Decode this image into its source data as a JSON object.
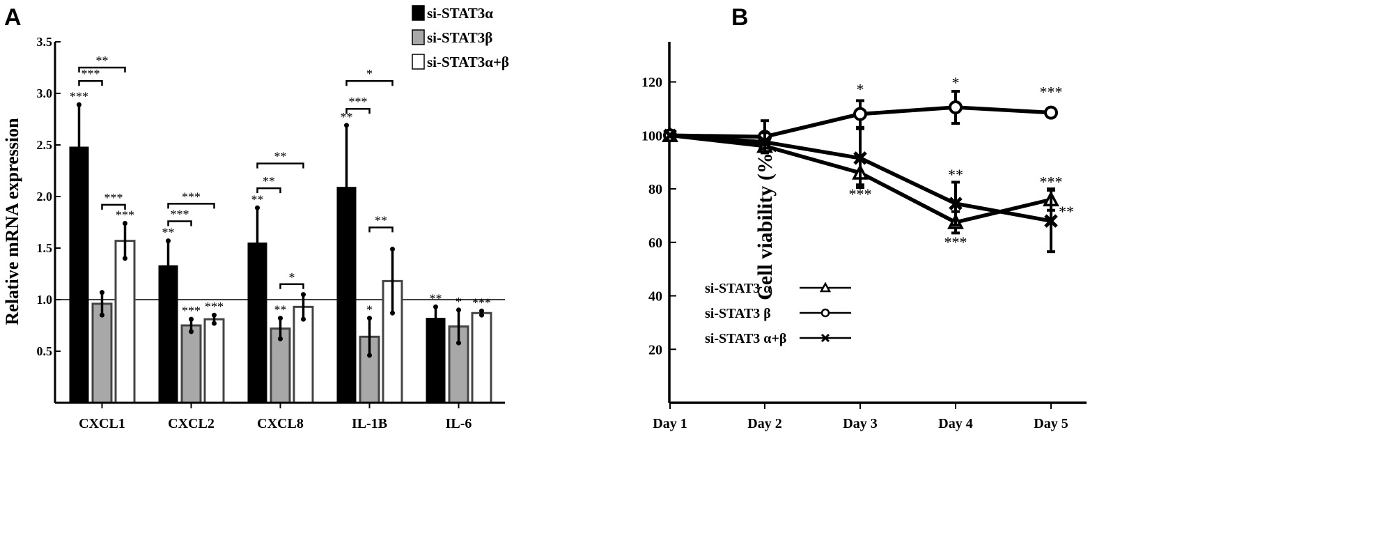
{
  "chart_data": [
    {
      "panel": "A",
      "type": "bar",
      "ylabel": "Relative mRNA expression",
      "ylim": [
        0,
        3.5
      ],
      "yticks": [
        "0.5",
        "1.0",
        "1.5",
        "2.0",
        "2.5",
        "3.0",
        "3.5"
      ],
      "reference_line": 1.0,
      "categories": [
        "CXCL1",
        "CXCL2",
        "CXCL8",
        "IL-1B",
        "IL-6"
      ],
      "series": [
        {
          "name": "si-STAT3α",
          "fill": "#000000",
          "values": [
            2.48,
            1.33,
            1.55,
            2.09,
            0.82
          ],
          "errors": [
            0.41,
            0.24,
            0.34,
            0.6,
            0.11
          ],
          "stars": [
            "***",
            "**",
            "**",
            "**",
            "**"
          ]
        },
        {
          "name": "si-STAT3β",
          "fill": "#a8a8a8",
          "values": [
            0.96,
            0.75,
            0.72,
            0.64,
            0.74
          ],
          "errors": [
            0.11,
            0.06,
            0.1,
            0.18,
            0.16
          ],
          "stars": [
            "",
            "***",
            "**",
            "*",
            "*"
          ]
        },
        {
          "name": "si-STAT3α+β",
          "fill": "#ffffff",
          "values": [
            1.57,
            0.81,
            0.93,
            1.18,
            0.87
          ],
          "errors": [
            0.17,
            0.04,
            0.12,
            0.31,
            0.02
          ],
          "stars": [
            "***",
            "***",
            "",
            "",
            "***"
          ]
        }
      ],
      "brackets": [
        {
          "cat": 0,
          "from": 0,
          "to": 1,
          "y": 3.12,
          "label": "***"
        },
        {
          "cat": 0,
          "from": 0,
          "to": 2,
          "y": 3.25,
          "label": "**"
        },
        {
          "cat": 0,
          "from": 1,
          "to": 2,
          "y": 1.92,
          "label": "***"
        },
        {
          "cat": 1,
          "from": 0,
          "to": 1,
          "y": 1.76,
          "label": "***"
        },
        {
          "cat": 1,
          "from": 0,
          "to": 2,
          "y": 1.93,
          "label": "***"
        },
        {
          "cat": 2,
          "from": 0,
          "to": 1,
          "y": 2.08,
          "label": "**"
        },
        {
          "cat": 2,
          "from": 0,
          "to": 2,
          "y": 2.32,
          "label": "**"
        },
        {
          "cat": 2,
          "from": 1,
          "to": 2,
          "y": 1.15,
          "label": "*"
        },
        {
          "cat": 3,
          "from": 0,
          "to": 1,
          "y": 2.85,
          "label": "***"
        },
        {
          "cat": 3,
          "from": 0,
          "to": 2,
          "y": 3.12,
          "label": "*"
        },
        {
          "cat": 3,
          "from": 1,
          "to": 2,
          "y": 1.7,
          "label": "**"
        }
      ]
    },
    {
      "panel": "B",
      "type": "line",
      "ylabel": "Cell viability (%)",
      "ylim": [
        0,
        135
      ],
      "yticks": [
        "20",
        "40",
        "60",
        "80",
        "100",
        "120"
      ],
      "x": [
        "Day 1",
        "Day 2",
        "Day 3",
        "Day 4",
        "Day 5"
      ],
      "series": [
        {
          "name": "si-STAT3 α",
          "marker": "triangle",
          "values": [
            100,
            96,
            86,
            67.5,
            76
          ],
          "errors": [
            0,
            2.5,
            4.5,
            4,
            4
          ],
          "stars": [
            "",
            "",
            "***",
            "***",
            "***"
          ]
        },
        {
          "name": "si-STAT3 β",
          "marker": "circle",
          "values": [
            100,
            99.5,
            108,
            110.5,
            108.5
          ],
          "errors": [
            0,
            6,
            5,
            6,
            1
          ],
          "stars": [
            "",
            "",
            "*",
            "*",
            "***"
          ]
        },
        {
          "name": "si-STAT3 α+β",
          "marker": "x",
          "values": [
            100,
            97.5,
            91.5,
            74.5,
            68
          ],
          "errors": [
            0,
            3.5,
            11,
            8,
            11.5
          ],
          "stars": [
            "",
            "",
            "",
            "**",
            "**"
          ]
        }
      ]
    }
  ]
}
